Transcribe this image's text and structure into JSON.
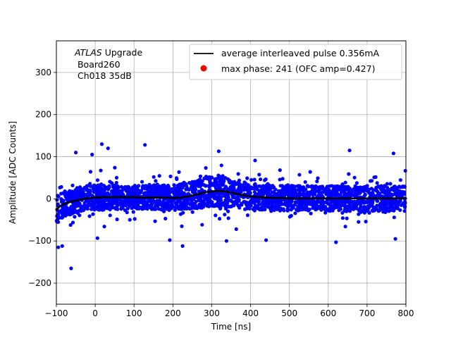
{
  "chart_data": {
    "type": "scatter",
    "title": "",
    "xlabel": "Time [ns]",
    "ylabel": "Amplitude [ADC Counts]",
    "xlim": [
      -100,
      800
    ],
    "ylim": [
      -250,
      375
    ],
    "xticks": [
      -100,
      0,
      100,
      200,
      300,
      400,
      500,
      600,
      700,
      800
    ],
    "yticks": [
      -200,
      -100,
      0,
      100,
      200,
      300
    ],
    "xtick_labels": [
      "−100",
      "0",
      "100",
      "200",
      "300",
      "400",
      "500",
      "600",
      "700",
      "800"
    ],
    "ytick_labels": [
      "−200",
      "−100",
      "0",
      "100",
      "200",
      "300"
    ],
    "grid": true,
    "legend_position": "top-right",
    "annotation": {
      "italic": "ATLAS",
      "rest": " Upgrade",
      "line2": " Board260",
      "line3": " Ch018 35dB"
    },
    "series": [
      {
        "name": "average interleaved pulse 0.356mA",
        "kind": "line",
        "color": "#000000",
        "x": [
          -100,
          -90,
          -80,
          -70,
          -60,
          -50,
          -40,
          -30,
          -20,
          -10,
          0,
          20,
          40,
          60,
          80,
          100,
          120,
          140,
          160,
          180,
          200,
          220,
          240,
          260,
          280,
          300,
          320,
          340,
          360,
          380,
          400,
          420,
          440,
          460,
          480,
          500,
          550,
          600,
          650,
          700,
          750,
          800
        ],
        "y": [
          -25,
          -17,
          -12,
          -9,
          -6,
          -4,
          -2,
          0,
          1,
          2,
          3,
          4,
          4,
          4,
          4,
          4,
          3,
          3,
          3,
          3,
          2,
          3,
          6,
          10,
          15,
          18,
          19,
          17,
          13,
          9,
          6,
          4,
          3,
          2,
          2,
          1,
          1,
          1,
          1,
          1,
          1,
          1
        ]
      },
      {
        "name": "max phase: 241 (OFC amp=0.427)",
        "kind": "marker",
        "color": "#ff0000"
      },
      {
        "name": "sample points",
        "kind": "scatter",
        "color": "#0000ff",
        "envelope_x": [
          -100,
          -80,
          -60,
          -40,
          -20,
          0,
          100,
          200,
          250,
          300,
          320,
          350,
          400,
          450,
          500,
          600,
          700,
          800
        ],
        "envelope_center": [
          -25,
          -12,
          -6,
          -2,
          1,
          3,
          4,
          3,
          8,
          18,
          19,
          15,
          6,
          3,
          2,
          1,
          1,
          1
        ],
        "envelope_halfwidth": [
          32,
          30,
          30,
          30,
          30,
          30,
          28,
          30,
          33,
          36,
          36,
          34,
          32,
          30,
          30,
          30,
          30,
          30
        ],
        "outliers": [
          {
            "x": -62,
            "y": -165
          },
          {
            "x": -95,
            "y": -115
          },
          {
            "x": -85,
            "y": -112
          },
          {
            "x": -50,
            "y": 110
          },
          {
            "x": 17,
            "y": 130
          },
          {
            "x": 33,
            "y": 120
          },
          {
            "x": 128,
            "y": 128
          },
          {
            "x": 225,
            "y": -112
          },
          {
            "x": 192,
            "y": -98
          },
          {
            "x": 318,
            "y": 113
          },
          {
            "x": 338,
            "y": -100
          },
          {
            "x": 440,
            "y": -98
          },
          {
            "x": 620,
            "y": -103
          },
          {
            "x": 655,
            "y": 115
          },
          {
            "x": 768,
            "y": 108
          },
          {
            "x": 773,
            "y": -95
          }
        ]
      }
    ]
  }
}
